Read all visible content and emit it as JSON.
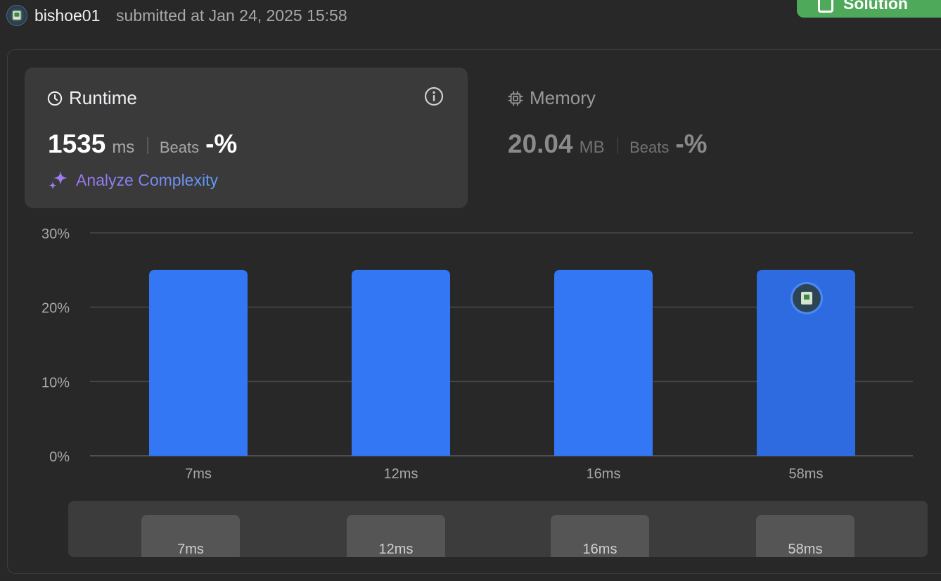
{
  "header": {
    "username": "bishoe01",
    "submitted_text": "submitted at Jan 24, 2025 15:58",
    "solution_button": "Solution"
  },
  "runtime": {
    "title": "Runtime",
    "value": "1535",
    "unit": "ms",
    "beats_label": "Beats",
    "beats_value": "-%",
    "analyze_label": "Analyze Complexity",
    "icon": "clock-icon"
  },
  "memory": {
    "title": "Memory",
    "value": "20.04",
    "unit": "MB",
    "beats_label": "Beats",
    "beats_value": "-%",
    "icon": "chip-icon"
  },
  "colors": {
    "bar": "#3377f5",
    "bar_highlight": "#2e6be0",
    "accent_green": "#4fa95a",
    "analyze_gradient_start": "#9e76ec",
    "analyze_gradient_end": "#5e9cf5"
  },
  "chart_data": {
    "type": "bar",
    "categories": [
      "7ms",
      "12ms",
      "16ms",
      "58ms"
    ],
    "values": [
      25,
      25,
      25,
      25
    ],
    "ylim": [
      0,
      30
    ],
    "yticks": [
      "0%",
      "10%",
      "20%",
      "30%"
    ],
    "ytick_values": [
      0,
      10,
      20,
      30
    ],
    "highlight_index": 3,
    "grid": true,
    "title": "",
    "xlabel": "",
    "ylabel": ""
  },
  "range_tabs": [
    "7ms",
    "12ms",
    "16ms",
    "58ms"
  ]
}
